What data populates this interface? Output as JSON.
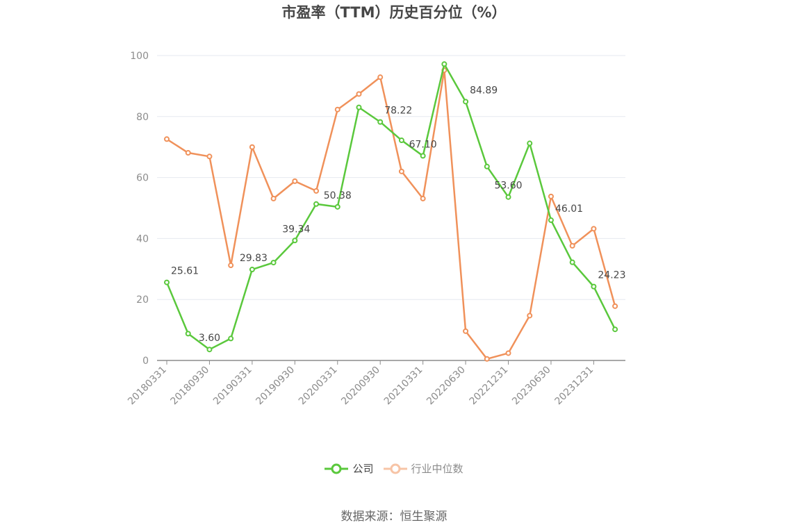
{
  "chart_data": {
    "type": "line",
    "title": "市盈率（TTM）历史百分位（%）",
    "x": [
      "20180331",
      "20180630",
      "20180930",
      "20181231",
      "20190331",
      "20190630",
      "20190930",
      "20191231",
      "20200331",
      "20200630",
      "20200930",
      "20201231",
      "20210331",
      "20210630",
      "20220630",
      "20220930",
      "20221231",
      "20230331",
      "20230630",
      "20230930",
      "20231231",
      "20240331"
    ],
    "x_tick_labels": [
      "20180331",
      "20180930",
      "20190331",
      "20190930",
      "20200331",
      "20200930",
      "20210331",
      "20220630",
      "20221231",
      "20230630",
      "20231231"
    ],
    "x_tick_indices": [
      0,
      2,
      4,
      6,
      8,
      10,
      12,
      14,
      16,
      18,
      20
    ],
    "ylim": [
      0,
      100
    ],
    "y_ticks": [
      "0",
      "20",
      "40",
      "60",
      "80",
      "100"
    ],
    "grid": true,
    "legend_position": "bottom-center",
    "series": [
      {
        "name": "公司",
        "color": "#5ac83c",
        "values": [
          25.61,
          8.8,
          3.6,
          7.2,
          29.83,
          32.1,
          39.34,
          51.3,
          50.38,
          83.0,
          78.22,
          72.2,
          67.1,
          97.2,
          84.89,
          63.6,
          53.6,
          71.2,
          46.01,
          32.2,
          24.23,
          10.2
        ],
        "labels": [
          {
            "index": 0,
            "text": "25.61"
          },
          {
            "index": 2,
            "text": "3.60"
          },
          {
            "index": 4,
            "text": "29.83"
          },
          {
            "index": 6,
            "text": "39.34"
          },
          {
            "index": 8,
            "text": "50.38"
          },
          {
            "index": 10,
            "text": "78.22"
          },
          {
            "index": 12,
            "text": "67.10"
          },
          {
            "index": 14,
            "text": "84.89"
          },
          {
            "index": 16,
            "text": "53.60"
          },
          {
            "index": 18,
            "text": "46.01"
          },
          {
            "index": 20,
            "text": "24.23"
          }
        ]
      },
      {
        "name": "行业中位数",
        "color": "#f0915a",
        "values": [
          72.6,
          68.1,
          66.9,
          31.2,
          70.0,
          53.1,
          58.8,
          55.6,
          82.3,
          87.4,
          92.9,
          62.0,
          53.1,
          95.2,
          9.6,
          0.5,
          2.4,
          14.7,
          53.8,
          37.6,
          43.2,
          17.8
        ]
      }
    ]
  },
  "legend": {
    "company": "公司",
    "industry": "行业中位数"
  },
  "source": "数据来源：恒生聚源"
}
